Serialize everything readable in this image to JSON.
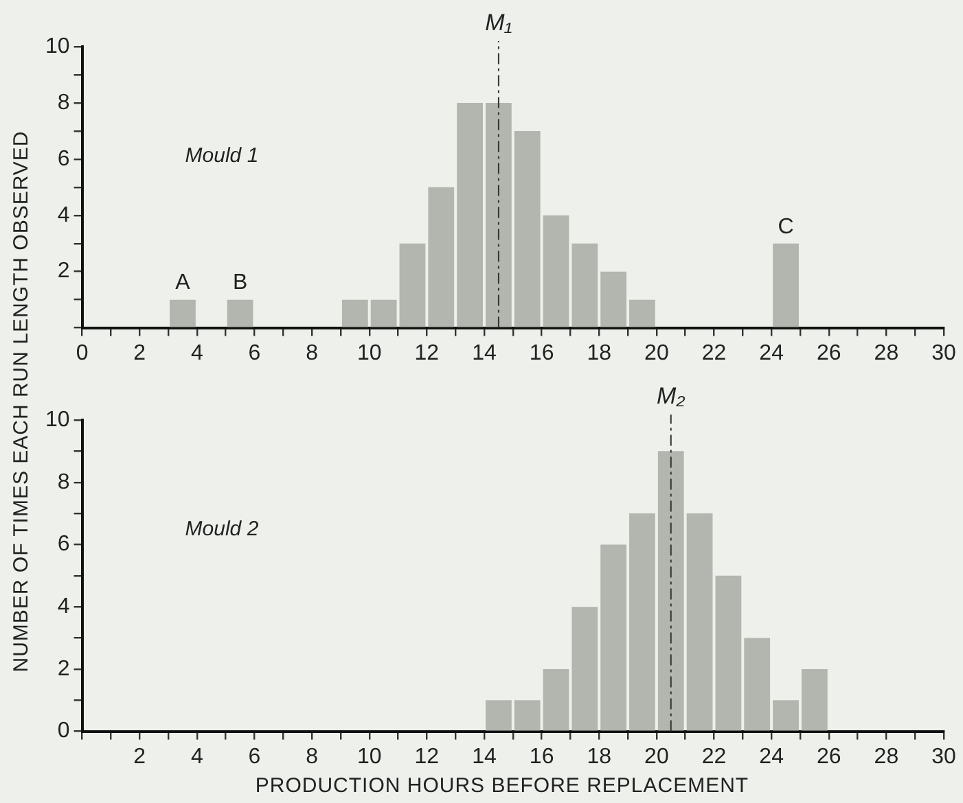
{
  "chart_data": [
    {
      "type": "histogram",
      "ylabel": "NUMBER OF TIMES EACH RUN LENGTH OBSERVED",
      "bins": [
        0,
        1,
        2,
        3,
        4,
        5,
        6,
        7,
        8,
        9,
        10,
        11,
        12,
        13,
        14,
        15,
        16,
        17,
        18,
        19,
        20,
        21,
        22,
        23,
        24,
        25,
        26,
        27,
        28,
        29,
        30
      ],
      "values": [
        0,
        0,
        0,
        1,
        0,
        1,
        0,
        0,
        0,
        1,
        1,
        3,
        5,
        8,
        8,
        7,
        4,
        3,
        2,
        1,
        0,
        0,
        0,
        0,
        3,
        0,
        0,
        0,
        0,
        0
      ],
      "color": "#b3b6af",
      "xlim": [
        0,
        30
      ],
      "ylim": [
        0,
        10
      ],
      "xticks": [
        0,
        {
          "value": 1,
          "label": null
        },
        2,
        {
          "value": 3,
          "label": null
        },
        4,
        {
          "value": 5,
          "label": null
        },
        6,
        {
          "value": 7,
          "label": null
        },
        8,
        {
          "value": 9,
          "label": null
        },
        10,
        {
          "value": 11,
          "label": null
        },
        12,
        {
          "value": 13,
          "label": null
        },
        14,
        {
          "value": 15,
          "label": null
        },
        16,
        {
          "value": 17,
          "label": null
        },
        18,
        {
          "value": 19,
          "label": null
        },
        20,
        {
          "value": 21,
          "label": null
        },
        22,
        {
          "value": 23,
          "label": null
        },
        24,
        {
          "value": 25,
          "label": null
        },
        26,
        {
          "value": 27,
          "label": null
        },
        28,
        {
          "value": 29,
          "label": null
        },
        30
      ],
      "yticks": [
        {
          "value": 0,
          "label": null
        },
        {
          "value": 1,
          "label": null
        },
        2,
        {
          "value": 3,
          "label": null
        },
        4,
        {
          "value": 5,
          "label": null
        },
        6,
        {
          "value": 7,
          "label": null
        },
        8,
        {
          "value": 9,
          "label": null
        },
        10
      ],
      "ref_lines": [
        {
          "axis": "x",
          "value": 14.5,
          "label": "M₁",
          "line_style": "dashdot"
        }
      ],
      "annotations": [
        "Mould 1",
        {
          "text": "A",
          "x": 3.5,
          "y": 1
        },
        {
          "text": "B",
          "x": 5.5,
          "y": 1
        },
        {
          "text": "C",
          "x": 24.5,
          "y": 3
        }
      ],
      "grid": false,
      "legend": false
    },
    {
      "type": "histogram",
      "xlabel": "PRODUCTION HOURS BEFORE REPLACEMENT",
      "bins": [
        0,
        1,
        2,
        3,
        4,
        5,
        6,
        7,
        8,
        9,
        10,
        11,
        12,
        13,
        14,
        15,
        16,
        17,
        18,
        19,
        20,
        21,
        22,
        23,
        24,
        25,
        26,
        27,
        28,
        29,
        30
      ],
      "values": [
        0,
        0,
        0,
        0,
        0,
        0,
        0,
        0,
        0,
        0,
        0,
        0,
        0,
        0,
        1,
        1,
        2,
        4,
        6,
        7,
        9,
        7,
        5,
        3,
        1,
        2,
        0,
        0,
        0,
        0
      ],
      "color": "#b3b6af",
      "xlim": [
        0,
        30
      ],
      "ylim": [
        0,
        10
      ],
      "xticks": [
        {
          "value": 0,
          "label": null
        },
        {
          "value": 1,
          "label": null
        },
        2,
        {
          "value": 3,
          "label": null
        },
        4,
        {
          "value": 5,
          "label": null
        },
        6,
        {
          "value": 7,
          "label": null
        },
        8,
        {
          "value": 9,
          "label": null
        },
        10,
        {
          "value": 11,
          "label": null
        },
        12,
        {
          "value": 13,
          "label": null
        },
        14,
        {
          "value": 15,
          "label": null
        },
        16,
        {
          "value": 17,
          "label": null
        },
        18,
        {
          "value": 19,
          "label": null
        },
        20,
        {
          "value": 21,
          "label": null
        },
        22,
        {
          "value": 23,
          "label": null
        },
        24,
        {
          "value": 25,
          "label": null
        },
        26,
        {
          "value": 27,
          "label": null
        },
        28,
        {
          "value": 29,
          "label": null
        },
        30
      ],
      "yticks": [
        0,
        {
          "value": 1,
          "label": null
        },
        2,
        {
          "value": 3,
          "label": null
        },
        4,
        {
          "value": 5,
          "label": null
        },
        6,
        {
          "value": 7,
          "label": null
        },
        8,
        {
          "value": 9,
          "label": null
        },
        10
      ],
      "ref_lines": [
        {
          "axis": "x",
          "value": 20.5,
          "label": "M₂",
          "line_style": "dashdot"
        }
      ],
      "annotations": [
        "Mould 2"
      ],
      "grid": false,
      "legend": false
    }
  ]
}
